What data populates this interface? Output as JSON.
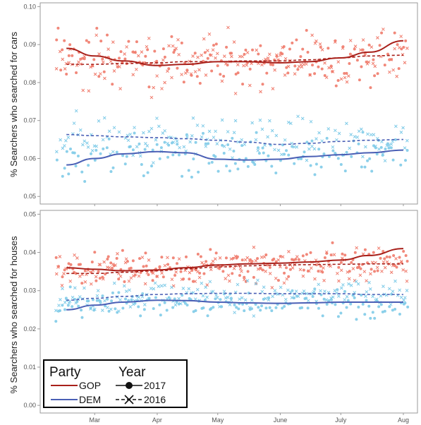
{
  "chart_data": [
    {
      "type": "scatter",
      "ylabel": "% Searchers who searched for cars",
      "ylim": [
        0.048,
        0.101
      ],
      "yticks": [
        "0.05",
        "0.06",
        "0.07",
        "0.08",
        "0.09",
        "0.10"
      ],
      "xticks": [
        "Mar",
        "Apr",
        "May",
        "June",
        "July",
        "Aug"
      ],
      "grid": false,
      "series": [
        {
          "name": "GOP 2017",
          "party": "GOP",
          "year": "2017",
          "marker": "dot",
          "line": "solid",
          "trend_x": [
            "Feb 15",
            "Mar 1",
            "Mar 15",
            "Apr 1",
            "Apr 15",
            "May 1",
            "May 15",
            "Jun 1",
            "Jun 15",
            "Jul 1",
            "Jul 15",
            "Aug 1"
          ],
          "trend": [
            0.089,
            0.087,
            0.0857,
            0.0845,
            0.0848,
            0.0855,
            0.0855,
            0.0852,
            0.0855,
            0.0865,
            0.088,
            0.091
          ],
          "scatter_center": 0.0865,
          "scatter_spread": 0.006
        },
        {
          "name": "GOP 2016",
          "party": "GOP",
          "year": "2016",
          "marker": "cross",
          "line": "dashed",
          "trend_x": [
            "Feb 15",
            "Mar 1",
            "Mar 15",
            "Apr 1",
            "Apr 15",
            "May 1",
            "May 15",
            "Jun 1",
            "Jun 15",
            "Jul 1",
            "Jul 15",
            "Aug 1"
          ],
          "trend": [
            0.0848,
            0.0848,
            0.085,
            0.0852,
            0.0855,
            0.0855,
            0.0857,
            0.0857,
            0.086,
            0.0865,
            0.087,
            0.0872
          ],
          "scatter_center": 0.086,
          "scatter_spread": 0.006
        },
        {
          "name": "DEM 2017",
          "party": "DEM",
          "year": "2017",
          "marker": "dot",
          "line": "solid",
          "trend_x": [
            "Feb 15",
            "Mar 1",
            "Mar 15",
            "Apr 1",
            "Apr 15",
            "May 1",
            "May 15",
            "Jun 1",
            "Jun 15",
            "Jul 1",
            "Jul 15",
            "Aug 1"
          ],
          "trend": [
            0.0583,
            0.06,
            0.0612,
            0.0618,
            0.0615,
            0.0598,
            0.0596,
            0.0598,
            0.0605,
            0.061,
            0.0615,
            0.0622
          ],
          "scatter_center": 0.0605,
          "scatter_spread": 0.005
        },
        {
          "name": "DEM 2016",
          "party": "DEM",
          "year": "2016",
          "marker": "cross",
          "line": "dashed",
          "trend_x": [
            "Feb 15",
            "Mar 1",
            "Mar 15",
            "Apr 1",
            "Apr 15",
            "May 1",
            "May 15",
            "Jun 1",
            "Jun 15",
            "Jul 1",
            "Jul 15",
            "Aug 1"
          ],
          "trend": [
            0.0663,
            0.066,
            0.0657,
            0.0655,
            0.0652,
            0.0648,
            0.0643,
            0.0637,
            0.064,
            0.0645,
            0.0648,
            0.065
          ],
          "scatter_center": 0.065,
          "scatter_spread": 0.005
        }
      ]
    },
    {
      "type": "scatter",
      "ylabel": "% Searchers who searched for houses",
      "ylim": [
        -0.002,
        0.051
      ],
      "yticks": [
        "0.00",
        "0.01",
        "0.02",
        "0.03",
        "0.04",
        "0.05"
      ],
      "xticks": [
        "Mar",
        "Apr",
        "May",
        "June",
        "July",
        "Aug"
      ],
      "grid": false,
      "series": [
        {
          "name": "GOP 2017",
          "party": "GOP",
          "year": "2017",
          "marker": "dot",
          "line": "solid",
          "trend_x": [
            "Feb 15",
            "Mar 1",
            "Mar 15",
            "Apr 1",
            "Apr 15",
            "May 1",
            "May 15",
            "Jun 1",
            "Jun 15",
            "Jul 1",
            "Jul 15",
            "Aug 1"
          ],
          "trend": [
            0.036,
            0.0356,
            0.0352,
            0.0354,
            0.036,
            0.0367,
            0.037,
            0.0372,
            0.0375,
            0.038,
            0.0392,
            0.041
          ],
          "scatter_center": 0.037,
          "scatter_spread": 0.004
        },
        {
          "name": "GOP 2016",
          "party": "GOP",
          "year": "2016",
          "marker": "cross",
          "line": "dashed",
          "trend_x": [
            "Feb 15",
            "Mar 1",
            "Mar 15",
            "Apr 1",
            "Apr 15",
            "May 1",
            "May 15",
            "Jun 1",
            "Jun 15",
            "Jul 1",
            "Jul 15",
            "Aug 1"
          ],
          "trend": [
            0.0345,
            0.0345,
            0.0348,
            0.0352,
            0.0357,
            0.0362,
            0.0365,
            0.0367,
            0.0368,
            0.0369,
            0.037,
            0.037
          ],
          "scatter_center": 0.036,
          "scatter_spread": 0.004
        },
        {
          "name": "DEM 2017",
          "party": "DEM",
          "year": "2017",
          "marker": "dot",
          "line": "solid",
          "trend_x": [
            "Feb 15",
            "Mar 1",
            "Mar 15",
            "Apr 1",
            "Apr 15",
            "May 1",
            "May 15",
            "Jun 1",
            "Jun 15",
            "Jul 1",
            "Jul 15",
            "Aug 1"
          ],
          "trend": [
            0.025,
            0.0262,
            0.027,
            0.0275,
            0.0274,
            0.027,
            0.0268,
            0.0267,
            0.0268,
            0.027,
            0.027,
            0.027
          ],
          "scatter_center": 0.0265,
          "scatter_spread": 0.0035
        },
        {
          "name": "DEM 2016",
          "party": "DEM",
          "year": "2016",
          "marker": "cross",
          "line": "dashed",
          "trend_x": [
            "Feb 15",
            "Mar 1",
            "Mar 15",
            "Apr 1",
            "Apr 15",
            "May 1",
            "May 15",
            "Jun 1",
            "Jun 15",
            "Jul 1",
            "Jul 15",
            "Aug 1"
          ],
          "trend": [
            0.0275,
            0.028,
            0.0285,
            0.029,
            0.0292,
            0.0293,
            0.0293,
            0.0292,
            0.0292,
            0.0292,
            0.029,
            0.029
          ],
          "scatter_center": 0.0285,
          "scatter_spread": 0.0035
        }
      ]
    }
  ],
  "legend": {
    "party_title": "Party",
    "year_title": "Year",
    "party_items": [
      {
        "label": "GOP",
        "color": "#a8201a"
      },
      {
        "label": "DEM",
        "color": "#4a5fb5"
      }
    ],
    "year_items": [
      {
        "label": "2017",
        "marker": "dot",
        "line": "solid"
      },
      {
        "label": "2016",
        "marker": "cross",
        "line": "dashed"
      }
    ],
    "placement": "bottom-left"
  },
  "colors": {
    "gop_line": "#a8201a",
    "dem_line": "#4a5fb5",
    "gop_point": "#f07b6c",
    "dem_point": "#7fcbe8"
  }
}
